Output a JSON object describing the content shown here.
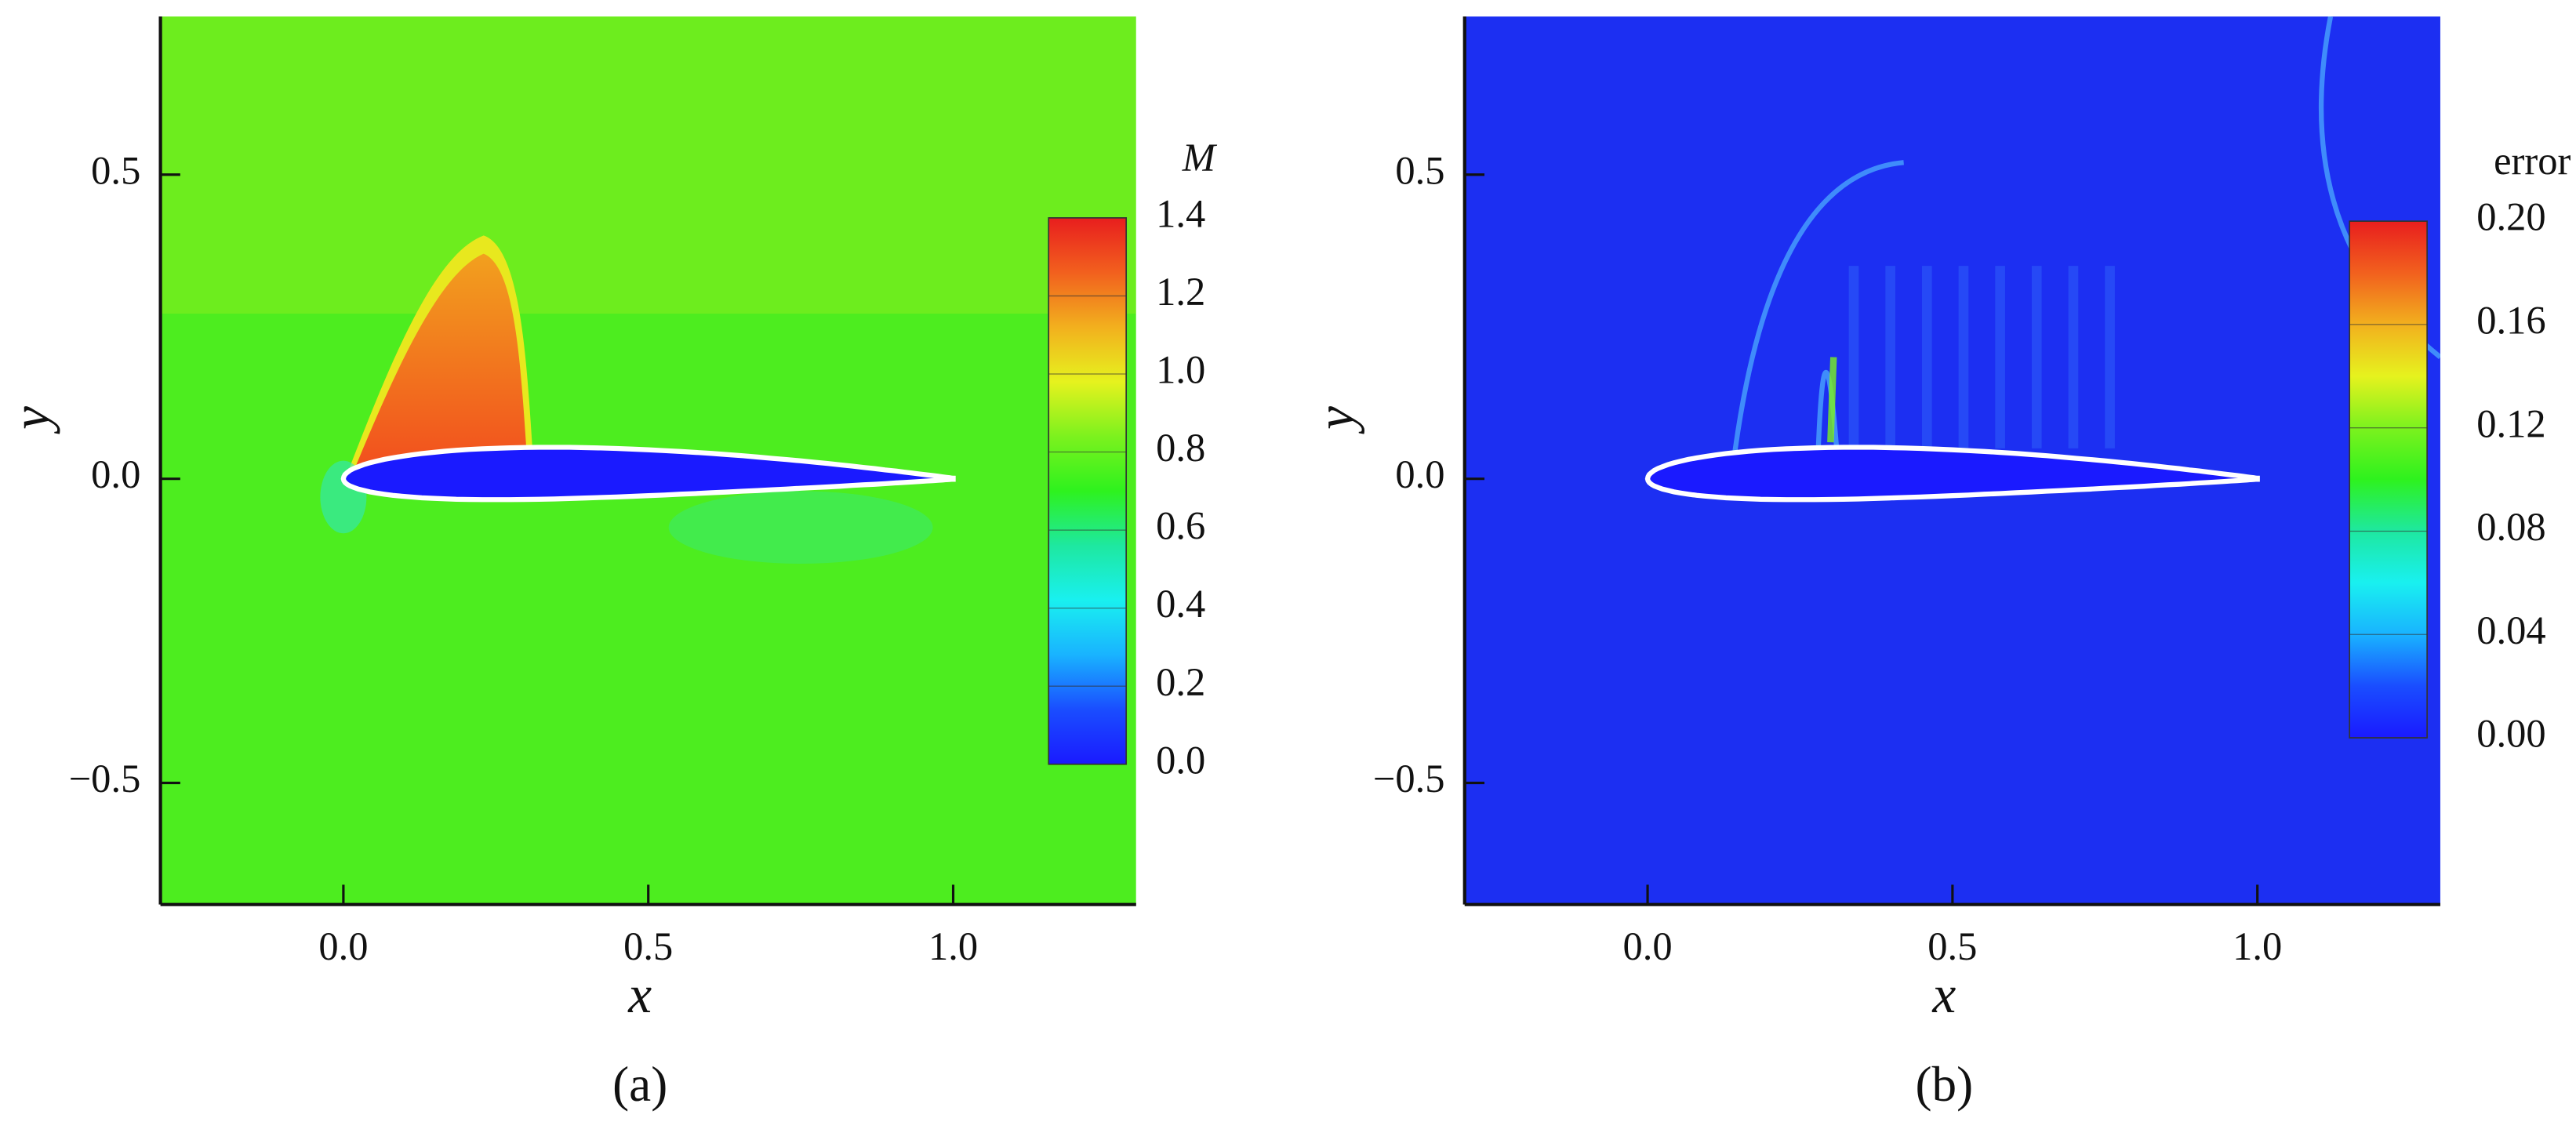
{
  "chart_data": [
    {
      "type": "contour",
      "caption": "(a)",
      "xlabel": "x",
      "ylabel": "y",
      "xlim": [
        -0.3,
        1.3
      ],
      "ylim": [
        -0.7,
        0.76
      ],
      "xticks": [
        {
          "value": 0,
          "label": "0.0"
        },
        0.5,
        {
          "value": 1,
          "label": "1.0"
        }
      ],
      "yticks": [
        {
          "value": -0.5,
          "label": "−0.5"
        },
        {
          "value": 0,
          "label": "0.0"
        },
        0.5
      ],
      "colorbar_title": "M",
      "clim": [
        0,
        1.4
      ],
      "cticks": [
        {
          "value": 0,
          "label": "0.0"
        },
        0.2,
        0.4,
        0.6,
        0.8,
        {
          "value": 1,
          "label": "1.0"
        },
        1.2,
        1.4
      ],
      "colormap": [
        "#1a1aff",
        "#1a4dff",
        "#19b3ff",
        "#19f0f0",
        "#1ee8a0",
        "#2ef21e",
        "#7cf21e",
        "#e6f21e",
        "#f2b01e",
        "#f2601e",
        "#e81e1e"
      ]
    },
    {
      "type": "contour",
      "caption": "(b)",
      "xlabel": "x",
      "ylabel": "y",
      "xlim": [
        -0.3,
        1.3
      ],
      "ylim": [
        -0.7,
        0.76
      ],
      "xticks": [
        {
          "value": 0,
          "label": "0.0"
        },
        0.5,
        {
          "value": 1,
          "label": "1.0"
        }
      ],
      "yticks": [
        {
          "value": -0.5,
          "label": "−0.5"
        },
        {
          "value": 0,
          "label": "0.0"
        },
        0.5
      ],
      "colorbar_title": "error",
      "clim": [
        0,
        0.2
      ],
      "cticks": [
        {
          "value": 0,
          "label": "0.00"
        },
        0.04,
        0.08,
        0.12,
        0.16,
        {
          "value": 0.2,
          "label": "0.20"
        }
      ],
      "colormap": [
        "#1a1aff",
        "#1a4dff",
        "#19b3ff",
        "#19f0f0",
        "#1ee8a0",
        "#2ef21e",
        "#7cf21e",
        "#e6f21e",
        "#f2b01e",
        "#f2601e",
        "#e81e1e"
      ]
    }
  ]
}
